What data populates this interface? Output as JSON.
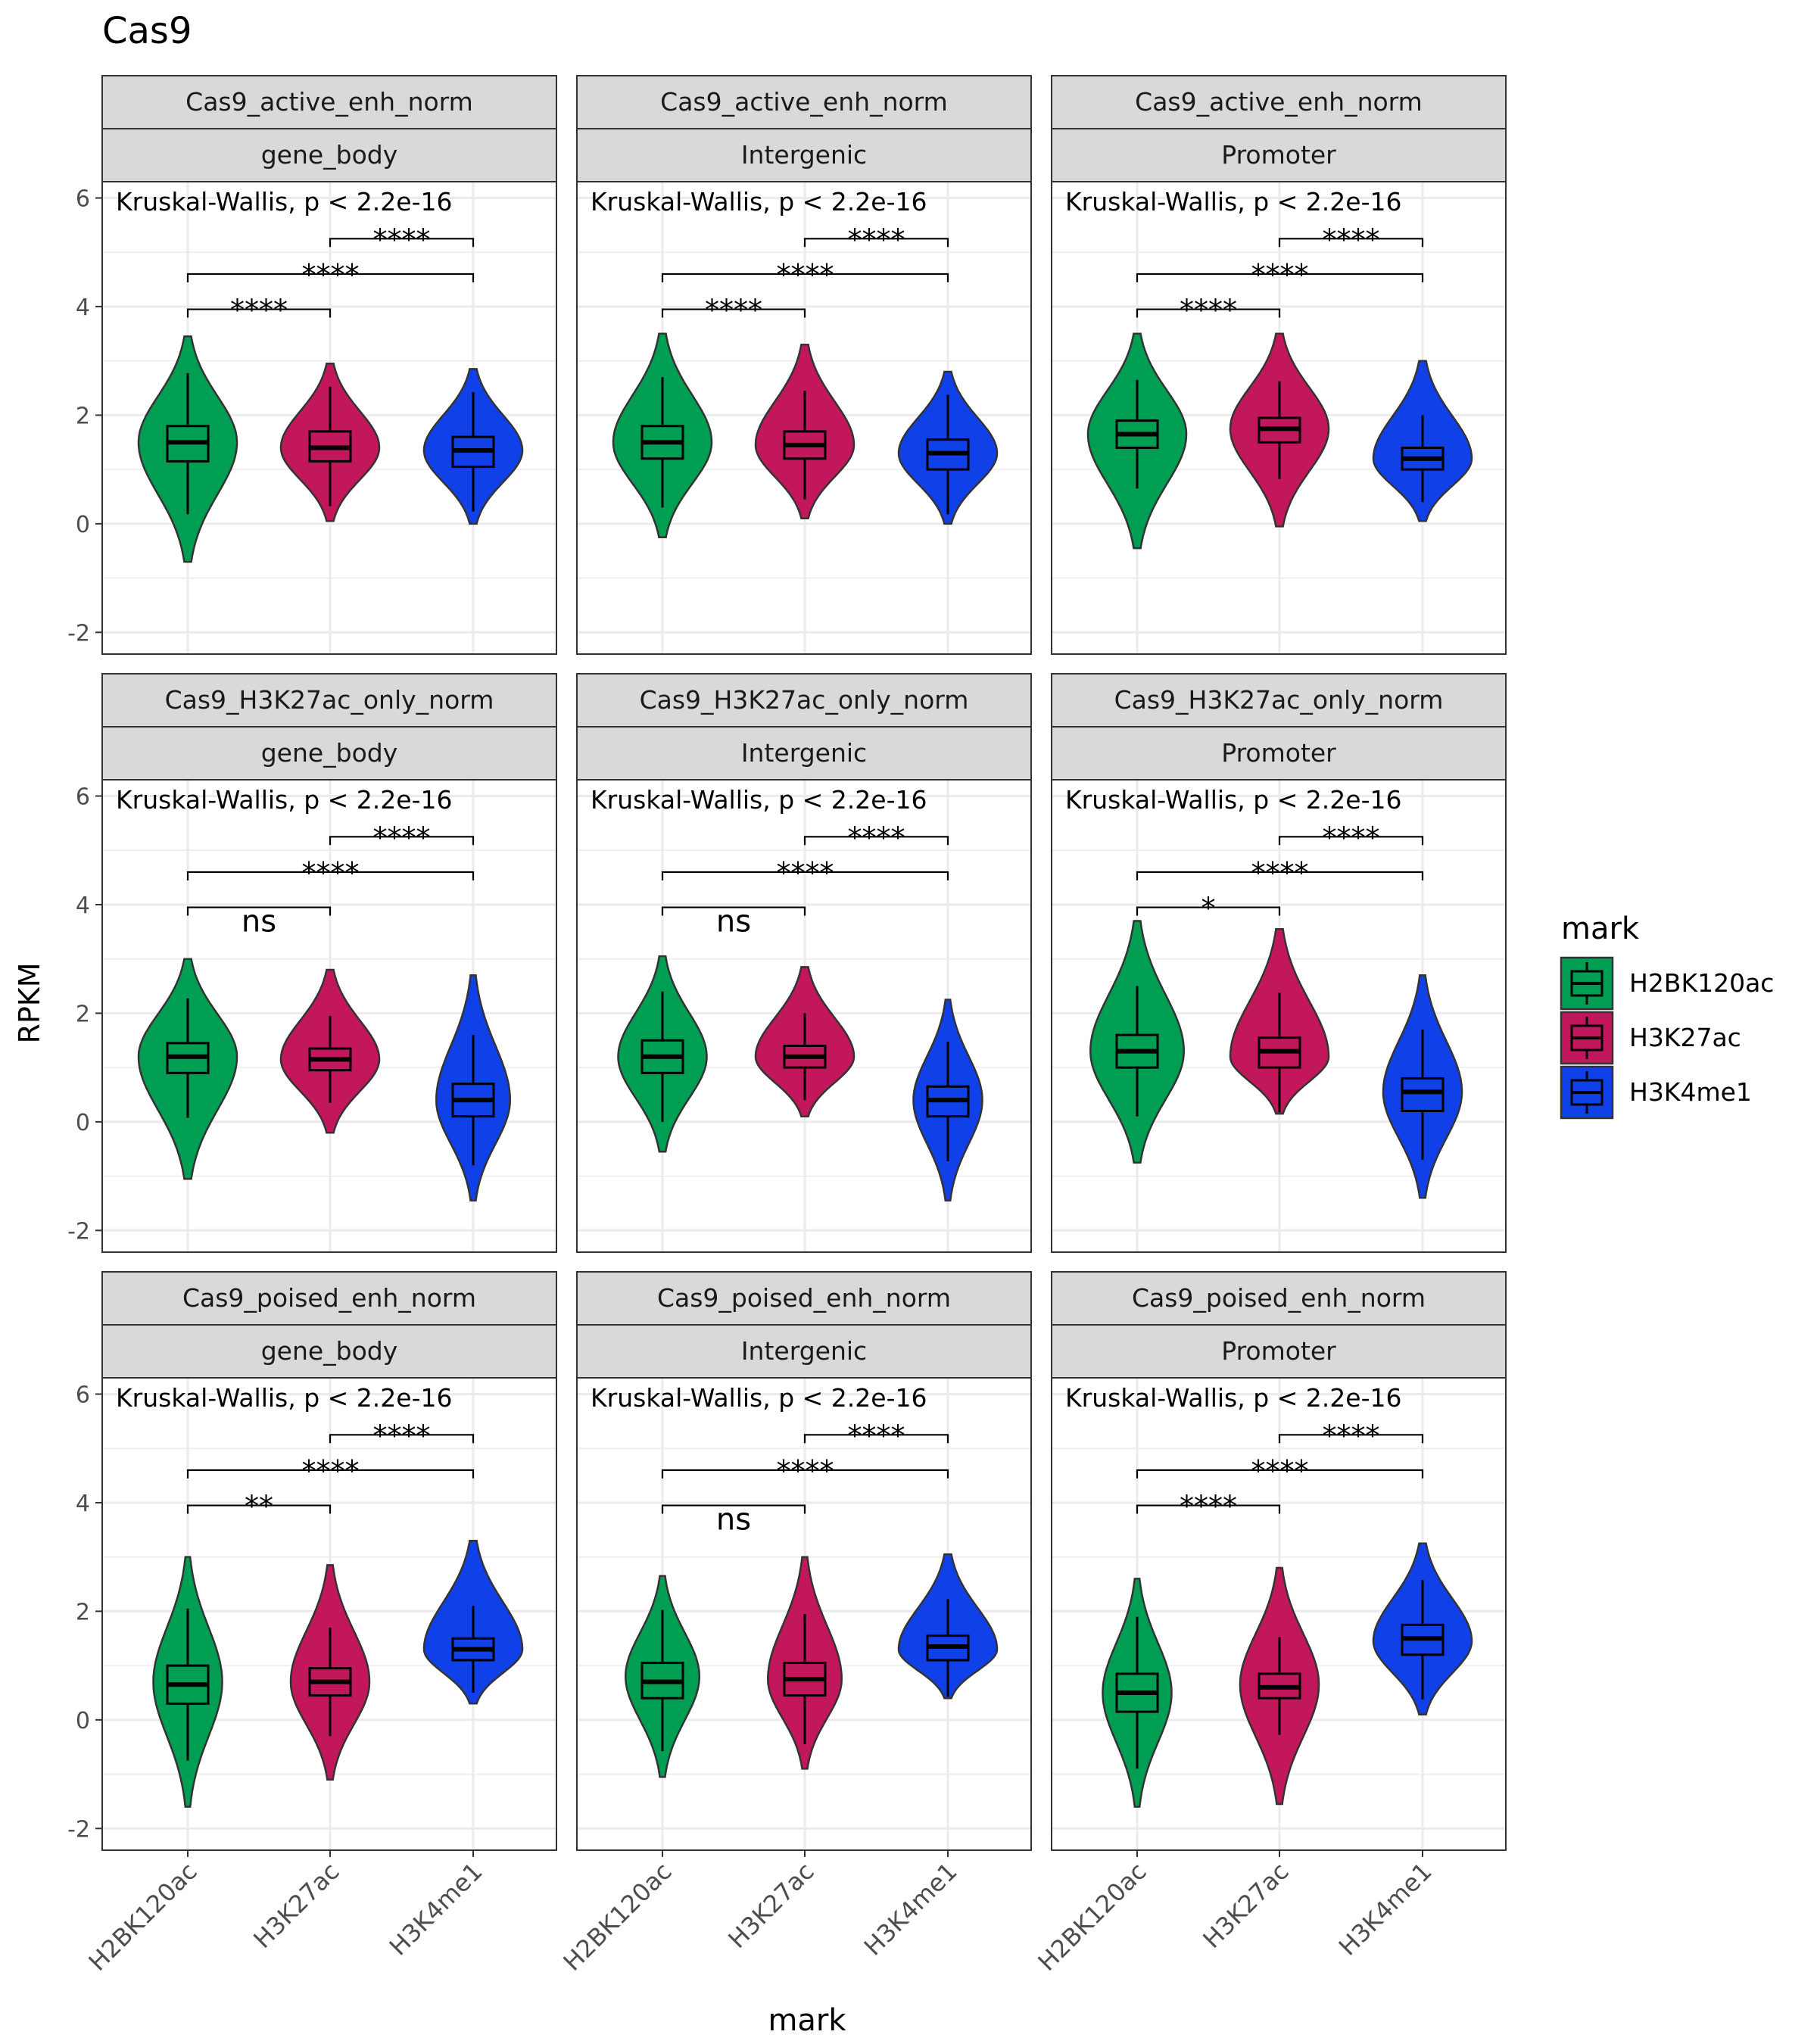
{
  "title": "Cas9",
  "xlabel": "mark",
  "ylabel": "RPKM",
  "legend": {
    "title": "mark",
    "position": "right",
    "items": [
      {
        "label": "H2BK120ac",
        "color": "#009E52"
      },
      {
        "label": "H3K27ac",
        "color": "#C2185B"
      },
      {
        "label": "H3K4me1",
        "color": "#1040E8"
      }
    ]
  },
  "chart_data": {
    "type": "violin",
    "categories": [
      "H2BK120ac",
      "H3K27ac",
      "H3K4me1"
    ],
    "colors": [
      "#009E52",
      "#C2185B",
      "#1040E8"
    ],
    "ylim": [
      -2.4,
      6.3
    ],
    "yticks": [
      -2,
      0,
      2,
      4,
      6
    ],
    "ytick_labels": [
      "-2",
      "0",
      "2",
      "4",
      "6"
    ],
    "grid": true,
    "stat_label": "Kruskal-Wallis, p < 2.2e-16",
    "col_labels": [
      "gene_body",
      "Intergenic",
      "Promoter"
    ],
    "row_labels": [
      "Cas9_active_enh_norm",
      "Cas9_H3K27ac_only_norm",
      "Cas9_poised_enh_norm"
    ],
    "panels": [
      {
        "strip_top": "Cas9_active_enh_norm",
        "strip_bottom": "gene_body",
        "violins": [
          {
            "mark": "H2BK120ac",
            "min": -0.7,
            "max": 3.45,
            "q1": 1.15,
            "median": 1.5,
            "q3": 1.8,
            "peak": 1.5,
            "width": 1.0
          },
          {
            "mark": "H3K27ac",
            "min": 0.05,
            "max": 2.95,
            "q1": 1.15,
            "median": 1.4,
            "q3": 1.7,
            "peak": 1.4,
            "width": 1.0
          },
          {
            "mark": "H3K4me1",
            "min": 0.0,
            "max": 2.85,
            "q1": 1.05,
            "median": 1.35,
            "q3": 1.6,
            "peak": 1.35,
            "width": 1.0
          }
        ],
        "comparisons": [
          {
            "from": "H3K27ac",
            "to": "H3K4me1",
            "y": 5.25,
            "label": "****"
          },
          {
            "from": "H2BK120ac",
            "to": "H3K4me1",
            "y": 4.6,
            "label": "****"
          },
          {
            "from": "H2BK120ac",
            "to": "H3K27ac",
            "y": 3.95,
            "label": "****"
          }
        ]
      },
      {
        "strip_top": "Cas9_active_enh_norm",
        "strip_bottom": "Intergenic",
        "violins": [
          {
            "mark": "H2BK120ac",
            "min": -0.25,
            "max": 3.5,
            "q1": 1.2,
            "median": 1.5,
            "q3": 1.8,
            "peak": 1.5,
            "width": 1.0
          },
          {
            "mark": "H3K27ac",
            "min": 0.1,
            "max": 3.3,
            "q1": 1.2,
            "median": 1.45,
            "q3": 1.7,
            "peak": 1.45,
            "width": 1.0
          },
          {
            "mark": "H3K4me1",
            "min": 0.0,
            "max": 2.8,
            "q1": 1.0,
            "median": 1.3,
            "q3": 1.55,
            "peak": 1.3,
            "width": 1.0
          }
        ],
        "comparisons": [
          {
            "from": "H3K27ac",
            "to": "H3K4me1",
            "y": 5.25,
            "label": "****"
          },
          {
            "from": "H2BK120ac",
            "to": "H3K4me1",
            "y": 4.6,
            "label": "****"
          },
          {
            "from": "H2BK120ac",
            "to": "H3K27ac",
            "y": 3.95,
            "label": "****"
          }
        ]
      },
      {
        "strip_top": "Cas9_active_enh_norm",
        "strip_bottom": "Promoter",
        "violins": [
          {
            "mark": "H2BK120ac",
            "min": -0.45,
            "max": 3.5,
            "q1": 1.4,
            "median": 1.65,
            "q3": 1.9,
            "peak": 1.65,
            "width": 1.0
          },
          {
            "mark": "H3K27ac",
            "min": -0.05,
            "max": 3.5,
            "q1": 1.5,
            "median": 1.75,
            "q3": 1.95,
            "peak": 1.75,
            "width": 1.0
          },
          {
            "mark": "H3K4me1",
            "min": 0.05,
            "max": 3.0,
            "q1": 1.0,
            "median": 1.2,
            "q3": 1.4,
            "peak": 1.2,
            "width": 1.0
          }
        ],
        "comparisons": [
          {
            "from": "H3K27ac",
            "to": "H3K4me1",
            "y": 5.25,
            "label": "****"
          },
          {
            "from": "H2BK120ac",
            "to": "H3K4me1",
            "y": 4.6,
            "label": "****"
          },
          {
            "from": "H2BK120ac",
            "to": "H3K27ac",
            "y": 3.95,
            "label": "****"
          }
        ]
      },
      {
        "strip_top": "Cas9_H3K27ac_only_norm",
        "strip_bottom": "gene_body",
        "violins": [
          {
            "mark": "H2BK120ac",
            "min": -1.05,
            "max": 3.0,
            "q1": 0.9,
            "median": 1.2,
            "q3": 1.45,
            "peak": 1.2,
            "width": 1.0
          },
          {
            "mark": "H3K27ac",
            "min": -0.2,
            "max": 2.8,
            "q1": 0.95,
            "median": 1.15,
            "q3": 1.35,
            "peak": 1.15,
            "width": 1.0
          },
          {
            "mark": "H3K4me1",
            "min": -1.45,
            "max": 2.7,
            "q1": 0.1,
            "median": 0.4,
            "q3": 0.7,
            "peak": 0.4,
            "width": 0.75
          }
        ],
        "comparisons": [
          {
            "from": "H3K27ac",
            "to": "H3K4me1",
            "y": 5.25,
            "label": "****"
          },
          {
            "from": "H2BK120ac",
            "to": "H3K4me1",
            "y": 4.6,
            "label": "****"
          },
          {
            "from": "H2BK120ac",
            "to": "H3K27ac",
            "y": 3.95,
            "label": "ns"
          }
        ]
      },
      {
        "strip_top": "Cas9_H3K27ac_only_norm",
        "strip_bottom": "Intergenic",
        "violins": [
          {
            "mark": "H2BK120ac",
            "min": -0.55,
            "max": 3.05,
            "q1": 0.9,
            "median": 1.2,
            "q3": 1.5,
            "peak": 1.2,
            "width": 0.9
          },
          {
            "mark": "H3K27ac",
            "min": 0.1,
            "max": 2.85,
            "q1": 1.0,
            "median": 1.2,
            "q3": 1.4,
            "peak": 1.2,
            "width": 1.0
          },
          {
            "mark": "H3K4me1",
            "min": -1.45,
            "max": 2.25,
            "q1": 0.1,
            "median": 0.4,
            "q3": 0.65,
            "peak": 0.4,
            "width": 0.7
          }
        ],
        "comparisons": [
          {
            "from": "H3K27ac",
            "to": "H3K4me1",
            "y": 5.25,
            "label": "****"
          },
          {
            "from": "H2BK120ac",
            "to": "H3K4me1",
            "y": 4.6,
            "label": "****"
          },
          {
            "from": "H2BK120ac",
            "to": "H3K27ac",
            "y": 3.95,
            "label": "ns"
          }
        ]
      },
      {
        "strip_top": "Cas9_H3K27ac_only_norm",
        "strip_bottom": "Promoter",
        "violins": [
          {
            "mark": "H2BK120ac",
            "min": -0.75,
            "max": 3.7,
            "q1": 1.0,
            "median": 1.3,
            "q3": 1.6,
            "peak": 1.3,
            "width": 0.95
          },
          {
            "mark": "H3K27ac",
            "min": 0.15,
            "max": 3.55,
            "q1": 1.0,
            "median": 1.3,
            "q3": 1.55,
            "peak": 1.2,
            "width": 1.0
          },
          {
            "mark": "H3K4me1",
            "min": -1.4,
            "max": 2.7,
            "q1": 0.2,
            "median": 0.55,
            "q3": 0.8,
            "peak": 0.55,
            "width": 0.8
          }
        ],
        "comparisons": [
          {
            "from": "H3K27ac",
            "to": "H3K4me1",
            "y": 5.25,
            "label": "****"
          },
          {
            "from": "H2BK120ac",
            "to": "H3K4me1",
            "y": 4.6,
            "label": "****"
          },
          {
            "from": "H2BK120ac",
            "to": "H3K27ac",
            "y": 3.95,
            "label": "*"
          }
        ]
      },
      {
        "strip_top": "Cas9_poised_enh_norm",
        "strip_bottom": "gene_body",
        "violins": [
          {
            "mark": "H2BK120ac",
            "min": -1.6,
            "max": 3.0,
            "q1": 0.3,
            "median": 0.65,
            "q3": 1.0,
            "peak": 0.7,
            "width": 0.7
          },
          {
            "mark": "H3K27ac",
            "min": -1.1,
            "max": 2.85,
            "q1": 0.45,
            "median": 0.7,
            "q3": 0.95,
            "peak": 0.7,
            "width": 0.8
          },
          {
            "mark": "H3K4me1",
            "min": 0.3,
            "max": 3.3,
            "q1": 1.1,
            "median": 1.3,
            "q3": 1.5,
            "peak": 1.3,
            "width": 1.0
          }
        ],
        "comparisons": [
          {
            "from": "H3K27ac",
            "to": "H3K4me1",
            "y": 5.25,
            "label": "****"
          },
          {
            "from": "H2BK120ac",
            "to": "H3K4me1",
            "y": 4.6,
            "label": "****"
          },
          {
            "from": "H2BK120ac",
            "to": "H3K27ac",
            "y": 3.95,
            "label": "**"
          }
        ]
      },
      {
        "strip_top": "Cas9_poised_enh_norm",
        "strip_bottom": "Intergenic",
        "violins": [
          {
            "mark": "H2BK120ac",
            "min": -1.05,
            "max": 2.65,
            "q1": 0.4,
            "median": 0.7,
            "q3": 1.05,
            "peak": 0.8,
            "width": 0.75
          },
          {
            "mark": "H3K27ac",
            "min": -0.9,
            "max": 3.0,
            "q1": 0.45,
            "median": 0.75,
            "q3": 1.05,
            "peak": 0.75,
            "width": 0.75
          },
          {
            "mark": "H3K4me1",
            "min": 0.4,
            "max": 3.05,
            "q1": 1.1,
            "median": 1.35,
            "q3": 1.55,
            "peak": 1.3,
            "width": 1.0
          }
        ],
        "comparisons": [
          {
            "from": "H3K27ac",
            "to": "H3K4me1",
            "y": 5.25,
            "label": "****"
          },
          {
            "from": "H2BK120ac",
            "to": "H3K4me1",
            "y": 4.6,
            "label": "****"
          },
          {
            "from": "H2BK120ac",
            "to": "H3K27ac",
            "y": 3.95,
            "label": "ns"
          }
        ]
      },
      {
        "strip_top": "Cas9_poised_enh_norm",
        "strip_bottom": "Promoter",
        "violins": [
          {
            "mark": "H2BK120ac",
            "min": -1.6,
            "max": 2.6,
            "q1": 0.15,
            "median": 0.5,
            "q3": 0.85,
            "peak": 0.5,
            "width": 0.7
          },
          {
            "mark": "H3K27ac",
            "min": -1.55,
            "max": 2.8,
            "q1": 0.4,
            "median": 0.6,
            "q3": 0.85,
            "peak": 0.65,
            "width": 0.8
          },
          {
            "mark": "H3K4me1",
            "min": 0.1,
            "max": 3.25,
            "q1": 1.2,
            "median": 1.5,
            "q3": 1.75,
            "peak": 1.45,
            "width": 1.0
          }
        ],
        "comparisons": [
          {
            "from": "H3K27ac",
            "to": "H3K4me1",
            "y": 5.25,
            "label": "****"
          },
          {
            "from": "H2BK120ac",
            "to": "H3K4me1",
            "y": 4.6,
            "label": "****"
          },
          {
            "from": "H2BK120ac",
            "to": "H3K27ac",
            "y": 3.95,
            "label": "****"
          }
        ]
      }
    ]
  }
}
